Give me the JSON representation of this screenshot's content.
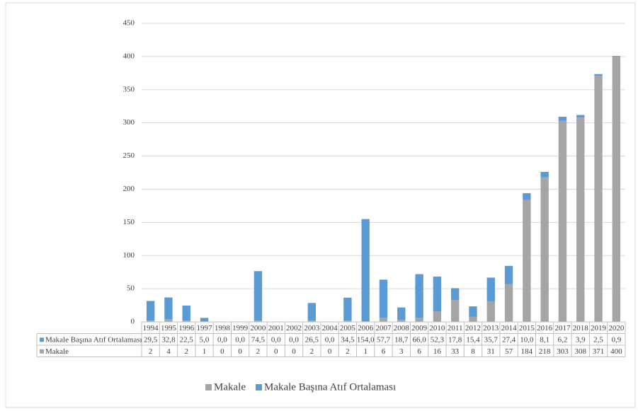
{
  "chart_data": {
    "type": "stacked-bar",
    "categories": [
      "1994",
      "1995",
      "1996",
      "1997",
      "1998",
      "1999",
      "2000",
      "2001",
      "2002",
      "2003",
      "2004",
      "2005",
      "2006",
      "2007",
      "2008",
      "2009",
      "2010",
      "2011",
      "2012",
      "2013",
      "2014",
      "2015",
      "2016",
      "2017",
      "2018",
      "2019",
      "2020"
    ],
    "series": [
      {
        "name": "Makale",
        "color": "#a5a5a5",
        "values": [
          2,
          4,
          2,
          1,
          0,
          0,
          2,
          0,
          0,
          2,
          0,
          2,
          1,
          6,
          3,
          6,
          16,
          33,
          8,
          31,
          57,
          184,
          218,
          303,
          308,
          371,
          400
        ]
      },
      {
        "name": "Makale Başına Atıf Ortalaması",
        "color": "#5b9bd5",
        "values": [
          29.5,
          32.8,
          22.5,
          5.0,
          0,
          0,
          74.5,
          0,
          0,
          26.5,
          0,
          34.5,
          154.0,
          57.7,
          18.7,
          66.0,
          52.3,
          17.8,
          15.4,
          35.7,
          27.4,
          10.0,
          8.1,
          6.2,
          3.9,
          2.5,
          0.9
        ],
        "value_labels": [
          "29,5",
          "32,8",
          "22,5",
          "5,0",
          "0,0",
          "0,0",
          "74,5",
          "0,0",
          "0,0",
          "26,5",
          "0,0",
          "34,5",
          "154,0",
          "57,7",
          "18,7",
          "66,0",
          "52,3",
          "17,8",
          "15,4",
          "35,7",
          "27,4",
          "10,0",
          "8,1",
          "6,2",
          "3,9",
          "2,5",
          "0,9"
        ]
      }
    ],
    "ylim": [
      0,
      450
    ],
    "yticks": [
      0,
      50,
      100,
      150,
      200,
      250,
      300,
      350,
      400,
      450
    ],
    "grid": true,
    "data_table": true,
    "legend": "bottom"
  }
}
